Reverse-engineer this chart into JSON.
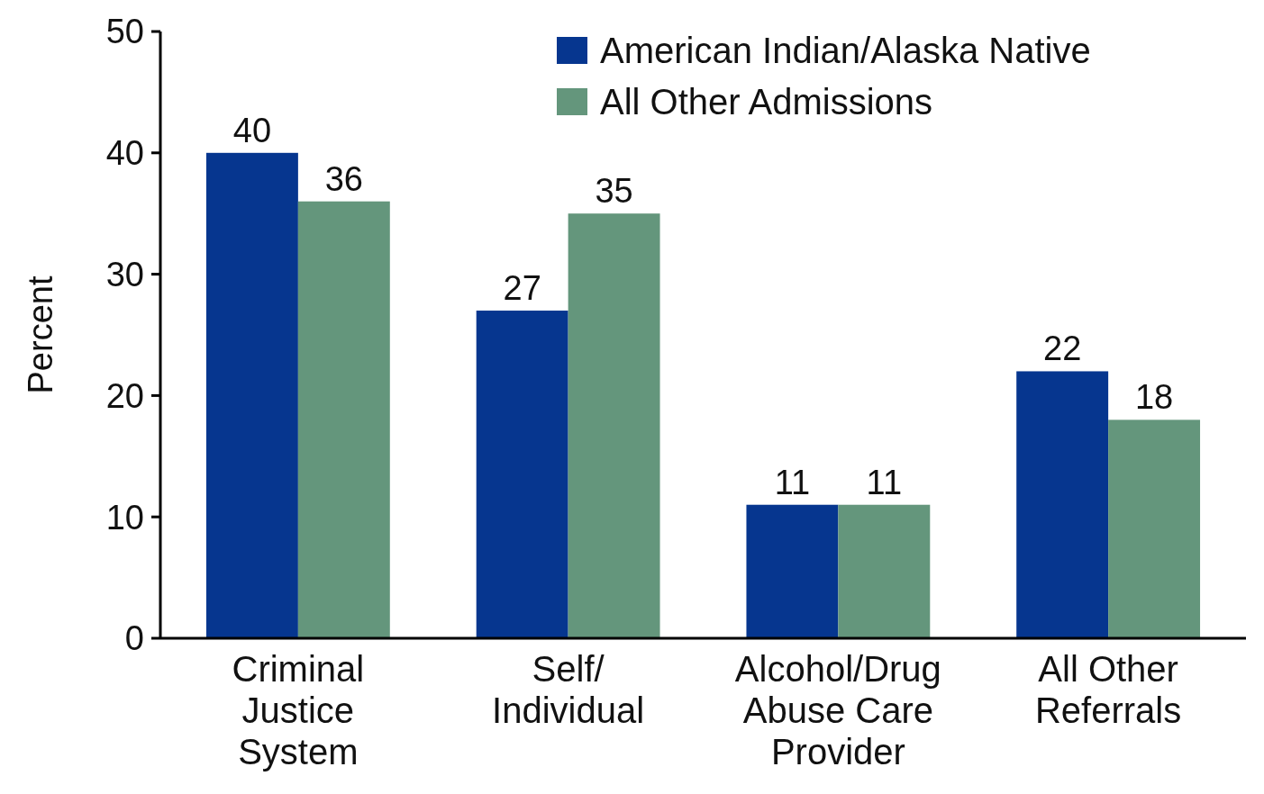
{
  "chart_data": {
    "type": "bar",
    "ylabel": "Percent",
    "categories": [
      "Criminal\nJustice\nSystem",
      "Self/\nIndividual",
      "Alcohol/Drug\nAbuse Care\nProvider",
      "All Other\nReferrals"
    ],
    "series": [
      {
        "name": "American Indian/Alaska Native",
        "color": "#06368f",
        "values": [
          40,
          27,
          11,
          22
        ]
      },
      {
        "name": "All Other Admissions",
        "color": "#64967c",
        "values": [
          36,
          35,
          11,
          18
        ]
      }
    ],
    "ylim": [
      0,
      50
    ],
    "yticks": [
      0,
      10,
      20,
      30,
      40,
      50
    ],
    "data_labels": true,
    "legend": "top right",
    "grid": false
  }
}
